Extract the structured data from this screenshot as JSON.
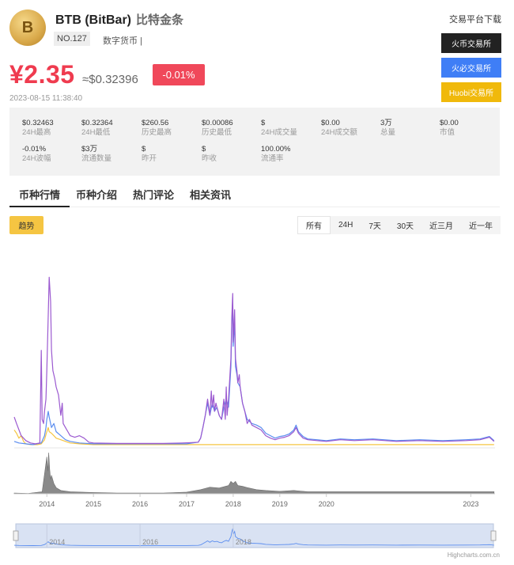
{
  "coin": {
    "logo_text": "B",
    "name": "BTB (BitBar)",
    "name_cn": "比特金条",
    "rank": "NO.127",
    "category": "数字货币 |"
  },
  "price": {
    "cny": "¥2.35",
    "usd": "≈$0.32396",
    "change": "-0.01%",
    "timestamp": "2023-08-15 11:38:40"
  },
  "exchanges": {
    "title": "交易平台下载",
    "buttons": [
      {
        "label": "火币交易所",
        "color": "#222222"
      },
      {
        "label": "火必交易所",
        "color": "#3f7ef6"
      },
      {
        "label": "Huobi交易所",
        "color": "#f0b90b"
      }
    ]
  },
  "stats": [
    {
      "value": "$0.32463",
      "label": "24H最高"
    },
    {
      "value": "$0.32364",
      "label": "24H最低"
    },
    {
      "value": "$260.56",
      "label": "历史最高"
    },
    {
      "value": "$0.00086",
      "label": "历史最低"
    },
    {
      "value": "$",
      "label": "24H成交量"
    },
    {
      "value": "$0.00",
      "label": "24H成交额"
    },
    {
      "value": "3万",
      "label": "总量"
    },
    {
      "value": "$0.00",
      "label": "市值"
    },
    {
      "value": "-0.01%",
      "label": "24H波幅"
    },
    {
      "value": "$3万",
      "label": "流通数量"
    },
    {
      "value": "$",
      "label": "昨开"
    },
    {
      "value": "$",
      "label": "昨收"
    },
    {
      "value": "100.00%",
      "label": "流通率"
    }
  ],
  "tabs": [
    "币种行情",
    "币种介绍",
    "热门评论",
    "相关资讯"
  ],
  "toolbar": {
    "trend_label": "趋势",
    "ranges": [
      "所有",
      "24H",
      "7天",
      "30天",
      "近三月",
      "近一年"
    ],
    "active_range": "所有"
  },
  "chart_data": {
    "type": "line",
    "x_ticks": [
      "2014",
      "2015",
      "2016",
      "2017",
      "2018",
      "2019",
      "2020",
      "2023"
    ],
    "navigator_ticks": [
      "2014",
      "2016",
      "2018"
    ],
    "xlim": [
      2013.3,
      2023.62
    ],
    "series": [
      {
        "color": "#9b59d0",
        "points": [
          [
            2013.3,
            0.38
          ],
          [
            2013.35,
            0.3
          ],
          [
            2013.45,
            0.15
          ],
          [
            2013.55,
            0.09
          ],
          [
            2013.65,
            0.06
          ],
          [
            2013.75,
            0.05
          ],
          [
            2013.85,
            0.06
          ],
          [
            2013.88,
            1.2
          ],
          [
            2013.9,
            0.35
          ],
          [
            2013.93,
            0.3
          ],
          [
            2013.95,
            0.45
          ],
          [
            2013.98,
            0.6
          ],
          [
            2014.0,
            0.95
          ],
          [
            2014.02,
            1.4
          ],
          [
            2014.05,
            2.1
          ],
          [
            2014.08,
            1.8
          ],
          [
            2014.1,
            1.2
          ],
          [
            2014.13,
            0.95
          ],
          [
            2014.17,
            0.85
          ],
          [
            2014.2,
            0.75
          ],
          [
            2014.25,
            0.65
          ],
          [
            2014.3,
            0.4
          ],
          [
            2014.33,
            0.55
          ],
          [
            2014.35,
            0.3
          ],
          [
            2014.4,
            0.25
          ],
          [
            2014.45,
            0.2
          ],
          [
            2014.5,
            0.15
          ],
          [
            2014.6,
            0.13
          ],
          [
            2014.7,
            0.15
          ],
          [
            2014.8,
            0.12
          ],
          [
            2014.9,
            0.07
          ],
          [
            2015.0,
            0.06
          ],
          [
            2015.5,
            0.055
          ],
          [
            2016.0,
            0.055
          ],
          [
            2016.5,
            0.055
          ],
          [
            2016.9,
            0.06
          ],
          [
            2017.1,
            0.065
          ],
          [
            2017.25,
            0.07
          ],
          [
            2017.3,
            0.12
          ],
          [
            2017.35,
            0.25
          ],
          [
            2017.4,
            0.4
          ],
          [
            2017.45,
            0.6
          ],
          [
            2017.5,
            0.4
          ],
          [
            2017.53,
            0.7
          ],
          [
            2017.55,
            0.5
          ],
          [
            2017.58,
            0.65
          ],
          [
            2017.6,
            0.45
          ],
          [
            2017.63,
            0.55
          ],
          [
            2017.65,
            0.5
          ],
          [
            2017.7,
            0.4
          ],
          [
            2017.75,
            0.35
          ],
          [
            2017.8,
            0.6
          ],
          [
            2017.83,
            0.35
          ],
          [
            2017.85,
            0.75
          ],
          [
            2017.87,
            0.4
          ],
          [
            2017.9,
            0.6
          ],
          [
            2017.95,
            1.1
          ],
          [
            2017.97,
            1.6
          ],
          [
            2017.99,
            1.9
          ],
          [
            2018.0,
            1.3
          ],
          [
            2018.03,
            1.7
          ],
          [
            2018.05,
            1.1
          ],
          [
            2018.08,
            0.95
          ],
          [
            2018.1,
            0.8
          ],
          [
            2018.13,
            0.9
          ],
          [
            2018.15,
            0.75
          ],
          [
            2018.2,
            0.55
          ],
          [
            2018.25,
            0.45
          ],
          [
            2018.3,
            0.3
          ],
          [
            2018.35,
            0.35
          ],
          [
            2018.4,
            0.28
          ],
          [
            2018.5,
            0.25
          ],
          [
            2018.6,
            0.22
          ],
          [
            2018.7,
            0.15
          ],
          [
            2018.8,
            0.12
          ],
          [
            2018.9,
            0.1
          ],
          [
            2019.0,
            0.12
          ],
          [
            2019.1,
            0.13
          ],
          [
            2019.2,
            0.15
          ],
          [
            2019.3,
            0.2
          ],
          [
            2019.35,
            0.25
          ],
          [
            2019.4,
            0.18
          ],
          [
            2019.5,
            0.12
          ],
          [
            2019.6,
            0.1
          ],
          [
            2019.8,
            0.09
          ],
          [
            2020.0,
            0.08
          ],
          [
            2020.3,
            0.1
          ],
          [
            2020.6,
            0.09
          ],
          [
            2021.0,
            0.1
          ],
          [
            2021.5,
            0.08
          ],
          [
            2022.0,
            0.09
          ],
          [
            2022.5,
            0.08
          ],
          [
            2023.0,
            0.09
          ],
          [
            2023.3,
            0.1
          ],
          [
            2023.5,
            0.13
          ],
          [
            2023.6,
            0.08
          ]
        ]
      },
      {
        "color": "#5b8def",
        "points": [
          [
            2013.3,
            0.08
          ],
          [
            2013.4,
            0.06
          ],
          [
            2013.55,
            0.05
          ],
          [
            2013.7,
            0.04
          ],
          [
            2013.88,
            0.06
          ],
          [
            2013.95,
            0.15
          ],
          [
            2013.98,
            0.25
          ],
          [
            2014.0,
            0.35
          ],
          [
            2014.03,
            0.45
          ],
          [
            2014.05,
            0.38
          ],
          [
            2014.08,
            0.3
          ],
          [
            2014.1,
            0.25
          ],
          [
            2014.15,
            0.3
          ],
          [
            2014.2,
            0.2
          ],
          [
            2014.3,
            0.15
          ],
          [
            2014.4,
            0.1
          ],
          [
            2014.5,
            0.08
          ],
          [
            2014.7,
            0.06
          ],
          [
            2015.0,
            0.05
          ],
          [
            2016.0,
            0.05
          ],
          [
            2017.0,
            0.05
          ],
          [
            2017.25,
            0.07
          ],
          [
            2017.3,
            0.12
          ],
          [
            2017.35,
            0.25
          ],
          [
            2017.4,
            0.4
          ],
          [
            2017.45,
            0.55
          ],
          [
            2017.5,
            0.4
          ],
          [
            2017.55,
            0.55
          ],
          [
            2017.6,
            0.45
          ],
          [
            2017.65,
            0.5
          ],
          [
            2017.7,
            0.4
          ],
          [
            2017.75,
            0.35
          ],
          [
            2017.8,
            0.5
          ],
          [
            2017.85,
            0.6
          ],
          [
            2017.9,
            0.5
          ],
          [
            2017.95,
            1.0
          ],
          [
            2017.97,
            1.5
          ],
          [
            2017.99,
            1.85
          ],
          [
            2018.0,
            1.25
          ],
          [
            2018.03,
            1.55
          ],
          [
            2018.05,
            1.0
          ],
          [
            2018.08,
            0.9
          ],
          [
            2018.1,
            0.8
          ],
          [
            2018.15,
            0.75
          ],
          [
            2018.2,
            0.55
          ],
          [
            2018.25,
            0.45
          ],
          [
            2018.3,
            0.35
          ],
          [
            2018.4,
            0.3
          ],
          [
            2018.5,
            0.28
          ],
          [
            2018.6,
            0.25
          ],
          [
            2018.7,
            0.18
          ],
          [
            2018.8,
            0.15
          ],
          [
            2018.9,
            0.12
          ],
          [
            2019.0,
            0.14
          ],
          [
            2019.1,
            0.15
          ],
          [
            2019.2,
            0.17
          ],
          [
            2019.3,
            0.22
          ],
          [
            2019.35,
            0.28
          ],
          [
            2019.4,
            0.2
          ],
          [
            2019.5,
            0.14
          ],
          [
            2019.6,
            0.11
          ],
          [
            2019.8,
            0.1
          ],
          [
            2020.0,
            0.09
          ],
          [
            2020.3,
            0.11
          ],
          [
            2020.6,
            0.1
          ],
          [
            2021.0,
            0.11
          ],
          [
            2021.5,
            0.09
          ],
          [
            2022.0,
            0.1
          ],
          [
            2022.5,
            0.09
          ],
          [
            2023.0,
            0.1
          ],
          [
            2023.3,
            0.11
          ],
          [
            2023.5,
            0.14
          ],
          [
            2023.6,
            0.09
          ]
        ]
      },
      {
        "color": "#f5c542",
        "points": [
          [
            2013.3,
            0.22
          ],
          [
            2013.35,
            0.18
          ],
          [
            2013.4,
            0.12
          ],
          [
            2013.45,
            0.15
          ],
          [
            2013.5,
            0.08
          ],
          [
            2013.55,
            0.05
          ],
          [
            2013.65,
            0.04
          ],
          [
            2013.8,
            0.04
          ],
          [
            2013.88,
            0.05
          ],
          [
            2013.95,
            0.1
          ],
          [
            2014.0,
            0.2
          ],
          [
            2014.03,
            0.25
          ],
          [
            2014.05,
            0.2
          ],
          [
            2014.1,
            0.18
          ],
          [
            2014.15,
            0.15
          ],
          [
            2014.2,
            0.12
          ],
          [
            2014.3,
            0.1
          ],
          [
            2014.4,
            0.08
          ],
          [
            2014.5,
            0.06
          ],
          [
            2014.7,
            0.05
          ],
          [
            2015.0,
            0.04
          ],
          [
            2016.0,
            0.04
          ],
          [
            2017.0,
            0.04
          ],
          [
            2017.5,
            0.04
          ],
          [
            2018.0,
            0.04
          ],
          [
            2019.0,
            0.04
          ],
          [
            2020.0,
            0.04
          ],
          [
            2021.0,
            0.04
          ],
          [
            2022.0,
            0.04
          ],
          [
            2023.0,
            0.04
          ],
          [
            2023.6,
            0.04
          ]
        ]
      }
    ],
    "volume": [
      [
        2013.3,
        0.02
      ],
      [
        2013.6,
        0.01
      ],
      [
        2013.9,
        0.05
      ],
      [
        2014.0,
        0.9
      ],
      [
        2014.02,
        0.55
      ],
      [
        2014.04,
        1.0
      ],
      [
        2014.06,
        0.6
      ],
      [
        2014.08,
        0.35
      ],
      [
        2014.1,
        0.45
      ],
      [
        2014.15,
        0.25
      ],
      [
        2014.2,
        0.15
      ],
      [
        2014.3,
        0.08
      ],
      [
        2014.5,
        0.05
      ],
      [
        2015.0,
        0.03
      ],
      [
        2015.5,
        0.02
      ],
      [
        2016.0,
        0.02
      ],
      [
        2016.5,
        0.02
      ],
      [
        2017.0,
        0.04
      ],
      [
        2017.3,
        0.1
      ],
      [
        2017.5,
        0.16
      ],
      [
        2017.7,
        0.14
      ],
      [
        2017.9,
        0.2
      ],
      [
        2017.95,
        0.3
      ],
      [
        2018.0,
        0.25
      ],
      [
        2018.05,
        0.3
      ],
      [
        2018.1,
        0.2
      ],
      [
        2018.2,
        0.18
      ],
      [
        2018.3,
        0.15
      ],
      [
        2018.5,
        0.1
      ],
      [
        2018.7,
        0.08
      ],
      [
        2019.0,
        0.06
      ],
      [
        2019.3,
        0.08
      ],
      [
        2019.6,
        0.05
      ],
      [
        2020.0,
        0.05
      ],
      [
        2021.0,
        0.05
      ],
      [
        2022.0,
        0.05
      ],
      [
        2023.0,
        0.05
      ],
      [
        2023.6,
        0.05
      ]
    ],
    "credit": "Highcharts.com.cn"
  }
}
